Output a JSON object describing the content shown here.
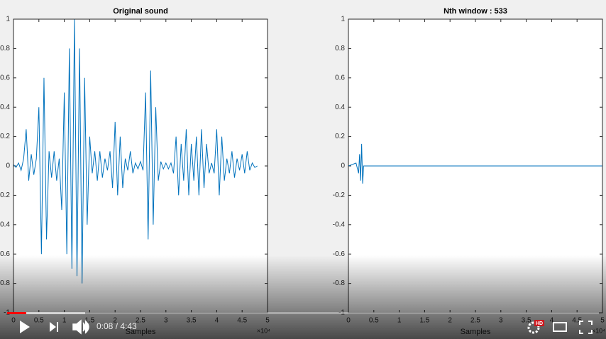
{
  "chart_data": [
    {
      "type": "line",
      "title": "Original sound",
      "xlabel": "Samples",
      "x_multiplier": "×10⁴",
      "color": "#0072bd",
      "x": [
        0,
        500,
        1000,
        1500,
        2000,
        2500,
        3000,
        3500,
        4000,
        4500,
        5000,
        5500,
        6000,
        6500,
        7000,
        7500,
        8000,
        8500,
        9000,
        9500,
        10000,
        10500,
        11000,
        11500,
        12000,
        12500,
        13000,
        13500,
        14000,
        14500,
        15000,
        15500,
        16000,
        16500,
        17000,
        17500,
        18000,
        18500,
        19000,
        19500,
        20000,
        20500,
        21000,
        21500,
        22000,
        22500,
        23000,
        23500,
        24000,
        24500,
        25000,
        25500,
        26000,
        26500,
        27000,
        27500,
        28000,
        28500,
        29000,
        29500,
        30000,
        30500,
        31000,
        31500,
        32000,
        32500,
        33000,
        33500,
        34000,
        34500,
        35000,
        35500,
        36000,
        36500,
        37000,
        37500,
        38000,
        38500,
        39000,
        39500,
        40000,
        40500,
        41000,
        41500,
        42000,
        42500,
        43000,
        43500,
        44000,
        44500,
        45000,
        45500,
        46000,
        46500,
        47000,
        47500,
        48000
      ],
      "values": [
        0.01,
        -0.01,
        0.02,
        -0.03,
        0.05,
        0.25,
        -0.1,
        0.08,
        -0.06,
        0.05,
        0.4,
        -0.6,
        0.6,
        -0.5,
        0.1,
        -0.08,
        0.1,
        -0.1,
        0.05,
        -0.3,
        0.5,
        -0.6,
        0.8,
        -0.7,
        1,
        -0.75,
        0.8,
        -0.8,
        0.6,
        -0.4,
        0.2,
        -0.05,
        0.1,
        -0.1,
        0.1,
        -0.08,
        0.05,
        -0.03,
        0.1,
        -0.15,
        0.3,
        -0.2,
        0.2,
        -0.15,
        0.05,
        -0.03,
        0.1,
        -0.05,
        0.02,
        -0.02,
        0.03,
        -0.03,
        0.5,
        -0.5,
        0.65,
        -0.4,
        0.4,
        -0.1,
        0.03,
        -0.02,
        0.02,
        -0.02,
        0.02,
        -0.05,
        0.2,
        -0.2,
        0.15,
        -0.1,
        0.25,
        -0.2,
        0.15,
        -0.1,
        0.2,
        -0.2,
        0.25,
        -0.15,
        0.15,
        -0.05,
        0.02,
        -0.05,
        0.25,
        -0.2,
        0.2,
        -0.1,
        0.05,
        -0.05,
        0.1,
        -0.08,
        0.05,
        -0.03,
        0.08,
        -0.05,
        0.1,
        -0.03,
        0.02,
        -0.01,
        0
      ],
      "xlim": [
        0,
        50000
      ],
      "ylim": [
        -1,
        1
      ],
      "xticks": [
        0,
        {
          "value": 5000,
          "label": "0.5"
        },
        {
          "value": 10000,
          "label": "1"
        },
        {
          "value": 15000,
          "label": "1.5"
        },
        {
          "value": 20000,
          "label": "2"
        },
        {
          "value": 25000,
          "label": "2.5"
        },
        {
          "value": 30000,
          "label": "3"
        },
        {
          "value": 35000,
          "label": "3.5"
        },
        {
          "value": 40000,
          "label": "4"
        },
        {
          "value": 45000,
          "label": "4.5"
        },
        {
          "value": 50000,
          "label": "5"
        }
      ],
      "yticks": [
        -1,
        -0.8,
        -0.6,
        -0.4,
        -0.2,
        0,
        0.2,
        0.4,
        0.6,
        0.8,
        1
      ]
    },
    {
      "type": "line",
      "title": "Nth window : 533",
      "xlabel": "Samples",
      "x_multiplier": "×10⁴",
      "color": "#0072bd",
      "x": [
        0,
        1500,
        2000,
        2200,
        2400,
        2600,
        2800,
        3000,
        50000
      ],
      "values": [
        0,
        0.02,
        -0.05,
        0.08,
        -0.1,
        0.15,
        -0.12,
        0,
        0
      ],
      "xlim": [
        0,
        50000
      ],
      "ylim": [
        -1,
        1
      ],
      "xticks": [
        0,
        {
          "value": 5000,
          "label": "0.5"
        },
        {
          "value": 10000,
          "label": "1"
        },
        {
          "value": 15000,
          "label": "1.5"
        },
        {
          "value": 20000,
          "label": "2"
        },
        {
          "value": 25000,
          "label": "2.5"
        },
        {
          "value": 30000,
          "label": "3"
        },
        {
          "value": 35000,
          "label": "3.5"
        },
        {
          "value": 40000,
          "label": "4"
        },
        {
          "value": 45000,
          "label": "4.5"
        },
        {
          "value": 50000,
          "label": "5"
        }
      ],
      "yticks": [
        -1,
        -0.8,
        -0.6,
        -0.4,
        -0.2,
        0,
        0.2,
        0.4,
        0.6,
        0.8,
        1
      ]
    }
  ],
  "player": {
    "time": "0:08 / 4:43",
    "hd_badge": "HD"
  }
}
